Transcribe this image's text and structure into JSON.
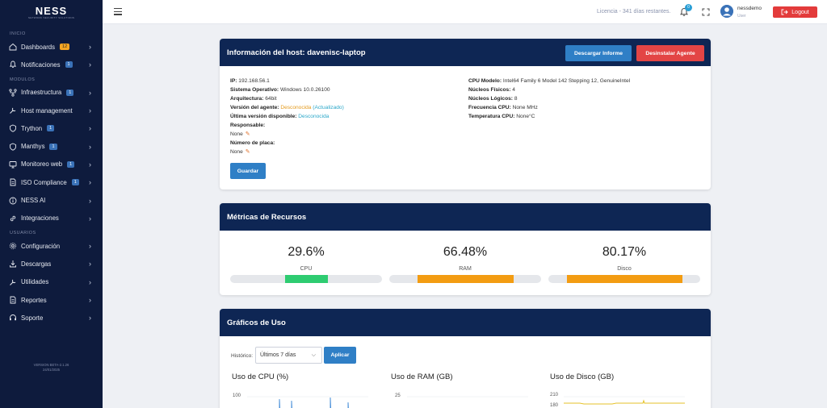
{
  "sidebar": {
    "logo": "NESS",
    "logo_sub": "NETWORK SECURITY SOLUTIONS",
    "sections": {
      "inicio": "INICIO",
      "modulos": "MODULOS",
      "usuarios": "USUARIOS"
    },
    "items": [
      {
        "label": "Dashboards",
        "badge": "12",
        "icon": "home-icon"
      },
      {
        "label": "Notificaciones",
        "badge": "1",
        "icon": "bell-icon"
      },
      {
        "label": "Infraestructura",
        "badge": "1",
        "icon": "network-icon"
      },
      {
        "label": "Host management",
        "badge": "",
        "icon": "wrench-icon"
      },
      {
        "label": "Trython",
        "badge": "1",
        "icon": "shield-icon"
      },
      {
        "label": "Manthys",
        "badge": "1",
        "icon": "shield-icon"
      },
      {
        "label": "Monitoreo web",
        "badge": "1",
        "icon": "monitor-icon"
      },
      {
        "label": "ISO Compliance",
        "badge": "1",
        "icon": "document-icon"
      },
      {
        "label": "NESS AI",
        "badge": "",
        "icon": "info-icon"
      },
      {
        "label": "Integraciones",
        "badge": "",
        "icon": "link-icon"
      },
      {
        "label": "Configuración",
        "badge": "",
        "icon": "gear-icon"
      },
      {
        "label": "Descargas",
        "badge": "",
        "icon": "download-icon"
      },
      {
        "label": "Utilidades",
        "badge": "",
        "icon": "wrench-icon"
      },
      {
        "label": "Reportes",
        "badge": "",
        "icon": "document-icon"
      },
      {
        "label": "Soporte",
        "badge": "",
        "icon": "headset-icon"
      }
    ],
    "version_line1": "VERSION BETA-2.1.26",
    "version_line2": "24/01/2025"
  },
  "topbar": {
    "license": "Licencia - 341 días restantes.",
    "notification_count": "0",
    "user_name": "nessdemo",
    "user_role": "User",
    "logout_label": "Logout"
  },
  "host": {
    "title": "Información del host: davenisc-laptop",
    "btn_report": "Descargar Informe",
    "btn_uninstall": "Desinstalar Agente",
    "left": {
      "ip_label": "IP:",
      "ip": "192.168.56.1",
      "os_label": "Sistema Operativo:",
      "os": "Windows 10.0.26100",
      "arch_label": "Arquitectura:",
      "arch": "64bit",
      "agent_label": "Versión del agente:",
      "agent": "Desconocida",
      "agent_status": "(Actualizado)",
      "latest_label": "Última versión disponible:",
      "latest": "Desconocida",
      "resp_label": "Responsable:",
      "resp": "None",
      "plate_label": "Número de placa:",
      "plate": "None"
    },
    "right": {
      "cpu_model_label": "CPU Modelo:",
      "cpu_model": "Intel64 Family 6 Model 142 Stepping 12, GenuineIntel",
      "phys_label": "Núcleos Físicos:",
      "phys": "4",
      "logic_label": "Núcleos Lógicos:",
      "logic": "8",
      "freq_label": "Frecuencia CPU:",
      "freq": "None MHz",
      "temp_label": "Temperatura CPU:",
      "temp": "None°C"
    },
    "save_label": "Guardar"
  },
  "metrics": {
    "title": "Métricas de Recursos",
    "items": [
      {
        "label": "CPU",
        "value_text": "29.6%",
        "value": 29.6,
        "color": "#2ecc71"
      },
      {
        "label": "RAM",
        "value_text": "66.48%",
        "value": 66.48,
        "color": "#f39c12"
      },
      {
        "label": "Disco",
        "value_text": "80.17%",
        "value": 80.17,
        "color": "#f39c12"
      }
    ]
  },
  "charts": {
    "title": "Gráficos de Uso",
    "historic_label": "Histórico:",
    "range_selected": "Últimos 7 días",
    "apply_label": "Aplicar",
    "cpu_title": "Uso de CPU (%)",
    "ram_title": "Uso de RAM (GB)",
    "disk_title": "Uso de Disco (GB)",
    "cpu_tick": "100",
    "ram_tick": "25",
    "disk_tick_top": "210",
    "disk_tick_bottom": "180"
  }
}
